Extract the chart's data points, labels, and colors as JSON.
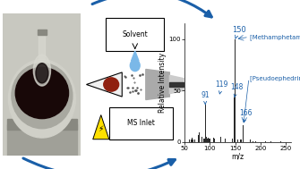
{
  "ms_xlim": [
    50,
    260
  ],
  "ms_ylim": [
    0,
    115
  ],
  "ms_xlabel": "m/z",
  "ms_ylabel": "Relative Intensity",
  "ms_xticks": [
    50,
    100,
    150,
    200,
    250
  ],
  "ms_yticks": [
    0,
    50,
    100
  ],
  "peaks": {
    "60": 2,
    "63": 2,
    "65": 4,
    "67": 2,
    "70": 2,
    "77": 7,
    "79": 9,
    "80": 5,
    "82": 3,
    "84": 5,
    "88": 3,
    "90": 3,
    "91": 36,
    "93": 5,
    "95": 3,
    "97": 4,
    "99": 3,
    "100": 3,
    "103": 3,
    "105": 6,
    "107": 4,
    "109": 3,
    "112": 3,
    "115": 4,
    "117": 5,
    "119": 46,
    "121": 5,
    "126": 3,
    "128": 3,
    "130": 3,
    "131": 4,
    "133": 3,
    "135": 3,
    "140": 3,
    "144": 3,
    "145": 4,
    "147": 3,
    "148": 43,
    "149": 7,
    "150": 100,
    "155": 2,
    "158": 2,
    "160": 2,
    "162": 2,
    "166": 16,
    "168": 3,
    "175": 2,
    "180": 2,
    "185": 1,
    "190": 1,
    "200": 1,
    "210": 0.5,
    "220": 0.5,
    "230": 0.5,
    "240": 0.3
  },
  "peak_color": "#2a2a2a",
  "annotation_color": "#1a5fa8",
  "arrow_color": "#1a5fa8",
  "bg_color": "#ffffff",
  "label_fontsize": 5.5,
  "tick_fontsize": 5,
  "axis_label_fontsize": 5.5,
  "label_meth": "[Methamphetamine + H]+",
  "label_pseudo": "[Pseudoephedrine + H]+",
  "photo_bg": "#c8c8c0",
  "photo_plate_color": "#b8b8b0",
  "photo_dish_outer": "#c0c0b8",
  "photo_dish_inner": "#909088",
  "photo_liquid": "#180808",
  "photo_flask": "#d8d8d0"
}
